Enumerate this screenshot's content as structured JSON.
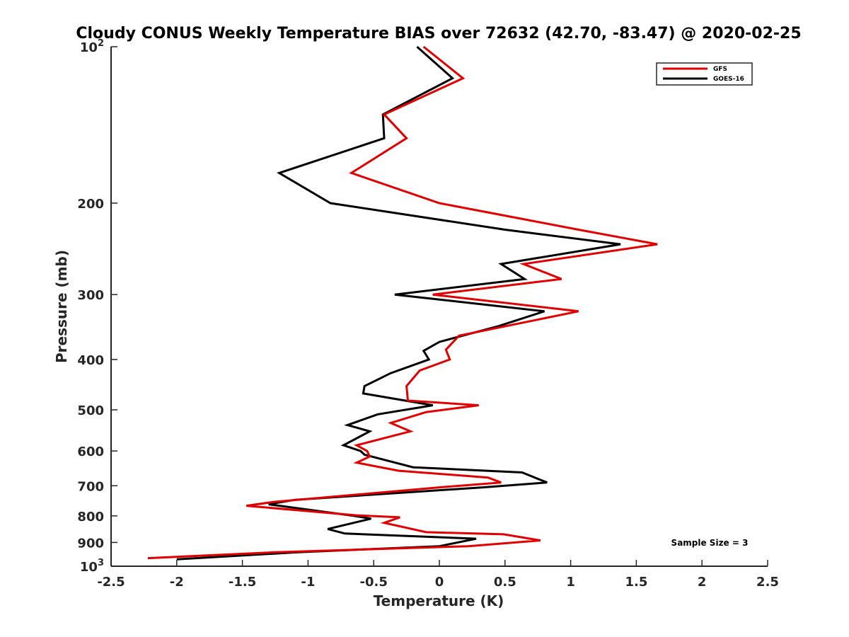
{
  "chart_data": {
    "type": "line",
    "title": "Cloudy CONUS Weekly Temperature BIAS over 72632 (42.70, -83.47) @ 2020-02-25",
    "xlabel": "Temperature (K)",
    "ylabel": "Pressure (mb)",
    "xlim": [
      -2.5,
      2.5
    ],
    "ylim": [
      100,
      1000
    ],
    "y_scale": "log",
    "y_reversed": true,
    "grid": false,
    "legend_position": "top-right",
    "x_ticks": [
      -2.5,
      -2,
      -1.5,
      -1,
      -0.5,
      0,
      0.5,
      1,
      1.5,
      2,
      2.5
    ],
    "x_tick_labels": [
      "-2.5",
      "-2",
      "-1.5",
      "-1",
      "-0.5",
      "0",
      "0.5",
      "1",
      "1.5",
      "2",
      "2.5"
    ],
    "y_ticks": [
      100,
      200,
      300,
      400,
      500,
      600,
      700,
      800,
      900,
      1000
    ],
    "y_tick_labels": [
      {
        "base": "10",
        "exp": "2"
      },
      {
        "base": "200",
        "exp": ""
      },
      {
        "base": "300",
        "exp": ""
      },
      {
        "base": "400",
        "exp": ""
      },
      {
        "base": "500",
        "exp": ""
      },
      {
        "base": "600",
        "exp": ""
      },
      {
        "base": "700",
        "exp": ""
      },
      {
        "base": "800",
        "exp": ""
      },
      {
        "base": "900",
        "exp": ""
      },
      {
        "base": "10",
        "exp": "3"
      }
    ],
    "annotation": "Sample Size = 3",
    "series": [
      {
        "name": "GFS",
        "color": "#e00000",
        "points": [
          [
            -0.12,
            100
          ],
          [
            0.18,
            115
          ],
          [
            -0.42,
            135
          ],
          [
            -0.25,
            150
          ],
          [
            -0.67,
            175
          ],
          [
            0,
            200
          ],
          [
            1.06,
            225
          ],
          [
            1.66,
            240
          ],
          [
            0.64,
            262
          ],
          [
            0.93,
            280
          ],
          [
            -0.05,
            300
          ],
          [
            1.06,
            323
          ],
          [
            0.15,
            360
          ],
          [
            0.05,
            383
          ],
          [
            0.08,
            400
          ],
          [
            -0.15,
            420
          ],
          [
            -0.25,
            450
          ],
          [
            -0.24,
            480
          ],
          [
            0.3,
            490
          ],
          [
            -0.1,
            505
          ],
          [
            -0.37,
            530
          ],
          [
            -0.22,
            550
          ],
          [
            -0.63,
            585
          ],
          [
            -0.55,
            600
          ],
          [
            -0.53,
            615
          ],
          [
            -0.63,
            632
          ],
          [
            -0.31,
            655
          ],
          [
            0.37,
            675
          ],
          [
            0.47,
            690
          ],
          [
            0,
            705
          ],
          [
            -1.26,
            752
          ],
          [
            -1.47,
            765
          ],
          [
            -0.63,
            798
          ],
          [
            -0.3,
            805
          ],
          [
            -0.42,
            825
          ],
          [
            -0.1,
            860
          ],
          [
            0.49,
            868
          ],
          [
            0.77,
            892
          ],
          [
            0.22,
            915
          ],
          [
            -1.25,
            940
          ],
          [
            -2.22,
            965
          ]
        ]
      },
      {
        "name": "GOES-16",
        "color": "#000000",
        "points": [
          [
            -0.17,
            100
          ],
          [
            0.1,
            115
          ],
          [
            -0.43,
            135
          ],
          [
            -0.42,
            150
          ],
          [
            -1.22,
            175
          ],
          [
            -0.83,
            200
          ],
          [
            0.5,
            225
          ],
          [
            1.38,
            240
          ],
          [
            0.47,
            262
          ],
          [
            0.65,
            280
          ],
          [
            -0.34,
            300
          ],
          [
            0.8,
            323
          ],
          [
            0.45,
            345
          ],
          [
            0,
            370
          ],
          [
            -0.12,
            385
          ],
          [
            -0.08,
            400
          ],
          [
            -0.37,
            425
          ],
          [
            -0.57,
            450
          ],
          [
            -0.58,
            465
          ],
          [
            -0.05,
            490
          ],
          [
            -0.47,
            510
          ],
          [
            -0.7,
            535
          ],
          [
            -0.53,
            550
          ],
          [
            -0.73,
            585
          ],
          [
            -0.6,
            600
          ],
          [
            -0.57,
            610
          ],
          [
            -0.2,
            645
          ],
          [
            0.63,
            660
          ],
          [
            0.82,
            690
          ],
          [
            0.33,
            705
          ],
          [
            -1.1,
            745
          ],
          [
            -1.3,
            760
          ],
          [
            -0.65,
            800
          ],
          [
            -0.52,
            810
          ],
          [
            -0.85,
            848
          ],
          [
            -0.72,
            865
          ],
          [
            0.28,
            885
          ],
          [
            0,
            915
          ],
          [
            -1.08,
            940
          ],
          [
            -2,
            970
          ]
        ]
      }
    ]
  }
}
